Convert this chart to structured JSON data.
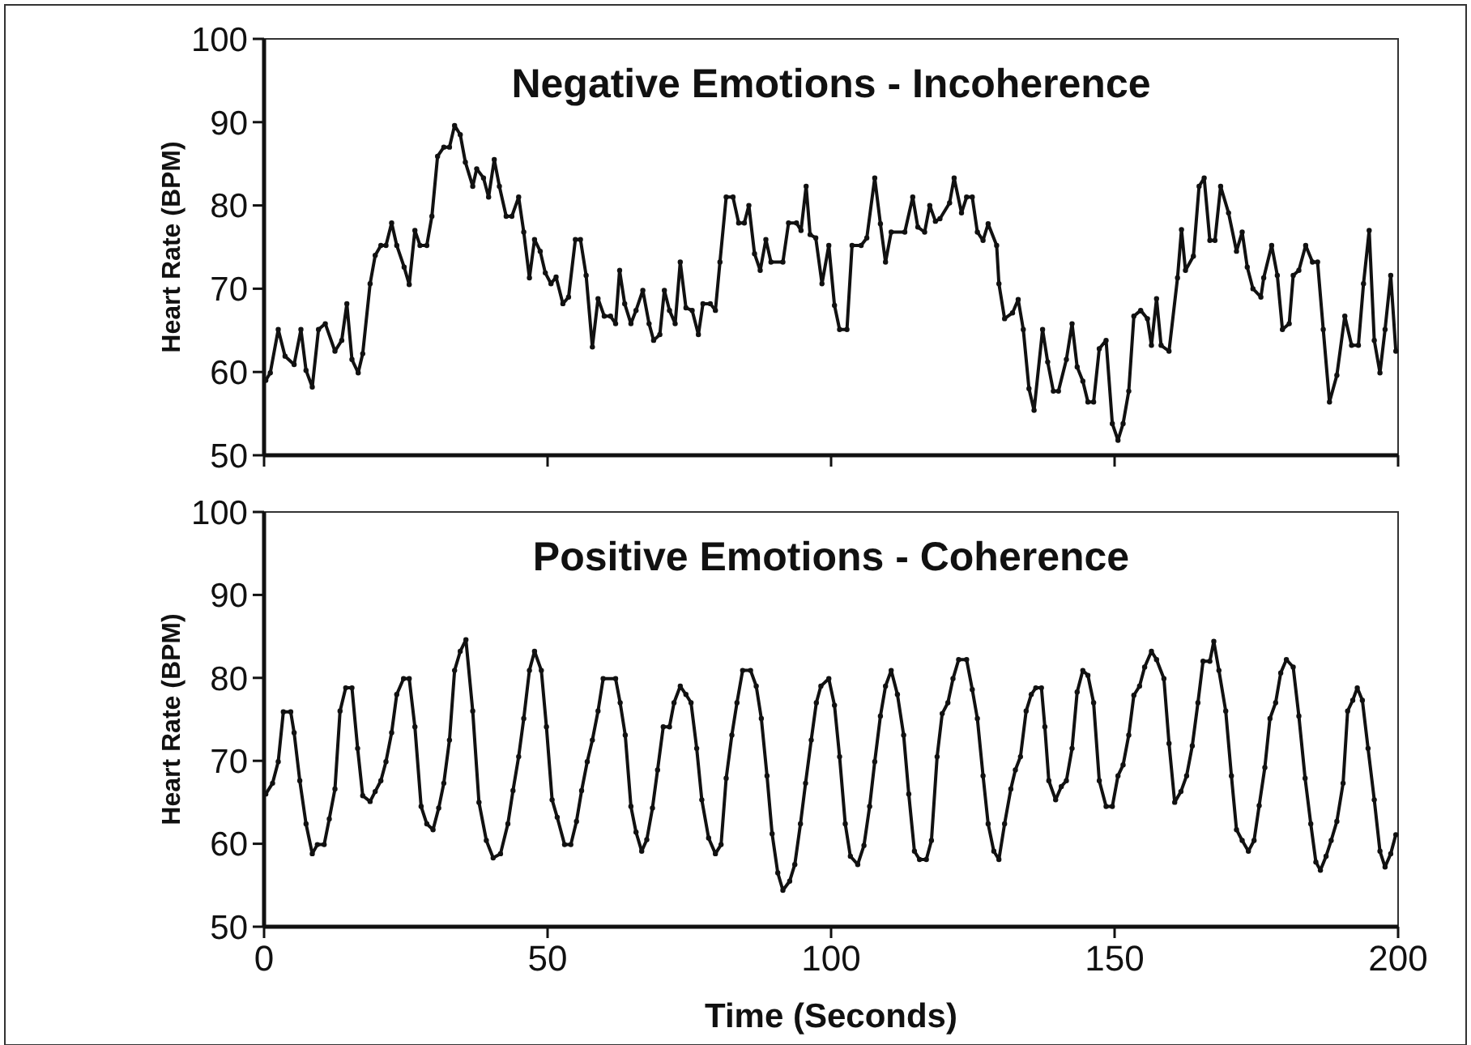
{
  "chart_data": [
    {
      "type": "line",
      "title": "Negative Emotions - Incoherence",
      "ylabel": "Heart Rate (BPM)",
      "xlim": [
        0,
        200
      ],
      "ylim": [
        50,
        100
      ],
      "xticks": [
        {
          "value": 0,
          "label": null
        },
        {
          "value": 50,
          "label": null
        },
        {
          "value": 100,
          "label": null
        },
        {
          "value": 150,
          "label": null
        },
        {
          "value": 200,
          "label": null
        }
      ],
      "yticks": [
        50,
        60,
        70,
        80,
        90,
        100
      ],
      "tick_labels": "y",
      "marker": "circle",
      "line_style": "solid",
      "series": [
        {
          "color": "#111111",
          "x": [
            0.3,
            1.1,
            2.5,
            3.7,
            5.3,
            6.5,
            7.4,
            8.5,
            9.6,
            10.8,
            12.5,
            13.7,
            14.6,
            15.5,
            16.6,
            17.4,
            18.7,
            19.6,
            20.6,
            21.5,
            22.5,
            23.4,
            24.7,
            25.6,
            26.6,
            27.5,
            28.7,
            29.6,
            30.6,
            31.7,
            32.7,
            33.6,
            34.6,
            35.5,
            36.8,
            37.5,
            38.7,
            39.6,
            40.6,
            41.5,
            42.7,
            43.7,
            44.9,
            45.8,
            46.8,
            47.7,
            48.7,
            49.6,
            50.6,
            51.5,
            52.7,
            53.7,
            54.9,
            55.8,
            56.8,
            57.9,
            58.9,
            60.0,
            61.1,
            62.0,
            62.7,
            63.6,
            64.7,
            65.6,
            66.8,
            67.9,
            68.7,
            69.8,
            70.6,
            71.5,
            72.5,
            73.4,
            74.4,
            75.5,
            76.6,
            77.4,
            78.7,
            79.6,
            80.4,
            81.5,
            82.7,
            83.7,
            84.7,
            85.5,
            86.5,
            87.5,
            88.5,
            89.4,
            91.5,
            92.5,
            93.9,
            94.7,
            95.6,
            96.3,
            97.3,
            98.4,
            99.6,
            100.6,
            101.5,
            102.8,
            103.7,
            105.3,
            106.3,
            107.7,
            108.7,
            109.6,
            110.6,
            113.0,
            114.4,
            115.3,
            116.5,
            117.4,
            118.4,
            119.2,
            120.9,
            121.7,
            123.0,
            123.9,
            124.9,
            125.8,
            126.8,
            127.7,
            129.2,
            129.6,
            130.6,
            132.0,
            133.0,
            133.9,
            134.9,
            135.8,
            137.3,
            138.2,
            139.2,
            140.1,
            141.5,
            142.5,
            143.4,
            144.4,
            145.3,
            146.3,
            147.3,
            148.5,
            149.6,
            150.6,
            151.5,
            152.5,
            153.4,
            154.6,
            155.8,
            156.5,
            157.4,
            158.2,
            159.6,
            161.1,
            161.8,
            162.5,
            163.9,
            164.9,
            165.8,
            166.8,
            167.7,
            168.7,
            170.1,
            171.5,
            172.5,
            173.4,
            174.4,
            175.8,
            176.3,
            177.7,
            178.7,
            179.6,
            180.8,
            181.5,
            182.5,
            183.7,
            184.9,
            185.8,
            186.8,
            187.9,
            189.2,
            190.6,
            191.8,
            193.0,
            193.9,
            194.9,
            195.8,
            196.8,
            197.7,
            198.7,
            199.6
          ],
          "values": [
            59.0,
            59.9,
            65.1,
            61.9,
            60.9,
            65.1,
            60.2,
            58.2,
            65.1,
            65.8,
            62.5,
            63.8,
            68.2,
            61.5,
            59.9,
            62.2,
            70.6,
            74.0,
            75.2,
            75.2,
            77.9,
            75.2,
            72.6,
            70.5,
            77.0,
            75.2,
            75.2,
            78.7,
            85.9,
            87.0,
            87.0,
            89.6,
            88.5,
            85.2,
            82.3,
            84.4,
            83.3,
            81.0,
            85.5,
            82.3,
            78.7,
            78.7,
            81.0,
            76.8,
            71.3,
            75.9,
            74.5,
            71.9,
            70.6,
            71.4,
            68.2,
            69.0,
            75.9,
            75.9,
            71.6,
            63.0,
            68.8,
            66.7,
            66.7,
            65.8,
            72.2,
            68.2,
            65.8,
            67.4,
            69.8,
            65.8,
            63.8,
            64.5,
            69.8,
            67.4,
            65.8,
            73.2,
            67.7,
            67.4,
            64.5,
            68.2,
            68.2,
            67.4,
            73.2,
            81.0,
            81.0,
            77.9,
            77.9,
            80.0,
            74.2,
            72.2,
            75.9,
            73.2,
            73.2,
            77.9,
            77.9,
            77.0,
            82.3,
            76.5,
            76.1,
            70.6,
            75.2,
            68.0,
            65.1,
            65.1,
            75.2,
            75.2,
            76.1,
            83.3,
            77.8,
            73.2,
            76.8,
            76.8,
            81.0,
            77.4,
            76.8,
            80.0,
            78.1,
            78.4,
            80.3,
            83.3,
            79.1,
            81.0,
            81.0,
            76.8,
            75.8,
            77.8,
            75.2,
            70.6,
            66.4,
            67.1,
            68.7,
            65.1,
            58.0,
            55.4,
            65.1,
            61.2,
            57.7,
            57.7,
            61.5,
            65.8,
            60.6,
            58.9,
            56.4,
            56.4,
            62.8,
            63.8,
            53.8,
            51.8,
            53.8,
            57.7,
            66.7,
            67.4,
            66.4,
            63.2,
            68.8,
            63.2,
            62.5,
            71.3,
            77.1,
            72.2,
            73.9,
            82.3,
            83.3,
            75.8,
            75.8,
            82.3,
            79.1,
            74.5,
            76.8,
            72.6,
            70.0,
            69.0,
            71.3,
            75.2,
            71.6,
            65.1,
            65.8,
            71.6,
            72.2,
            75.2,
            73.2,
            73.2,
            65.1,
            56.4,
            59.6,
            66.7,
            63.2,
            63.2,
            70.6,
            77.0,
            63.8,
            59.9,
            65.1,
            71.6,
            62.5
          ]
        }
      ]
    },
    {
      "type": "line",
      "title": "Positive Emotions - Coherence",
      "xlabel": "Time (Seconds)",
      "ylabel": "Heart Rate (BPM)",
      "xlim": [
        0,
        200
      ],
      "ylim": [
        50,
        100
      ],
      "xticks": [
        0,
        50,
        100,
        150,
        200
      ],
      "yticks": [
        50,
        60,
        70,
        80,
        90,
        100
      ],
      "marker": "circle",
      "line_style": "solid",
      "series": [
        {
          "color": "#111111",
          "x": [
            0.3,
            1.5,
            2.5,
            3.4,
            4.7,
            5.3,
            6.3,
            7.4,
            8.5,
            9.4,
            10.6,
            11.5,
            12.5,
            13.4,
            14.4,
            15.5,
            16.5,
            17.4,
            18.7,
            19.6,
            20.6,
            21.5,
            22.5,
            23.4,
            24.6,
            25.6,
            26.6,
            27.7,
            28.7,
            29.8,
            30.8,
            31.7,
            32.7,
            33.6,
            34.6,
            35.6,
            36.8,
            37.9,
            39.2,
            40.4,
            41.7,
            43.0,
            43.9,
            44.9,
            45.8,
            46.8,
            47.7,
            48.9,
            49.8,
            50.8,
            51.7,
            53.0,
            54.1,
            55.1,
            56.0,
            57.0,
            57.9,
            58.9,
            59.8,
            62.0,
            62.8,
            63.7,
            64.7,
            65.6,
            66.6,
            67.5,
            68.5,
            69.4,
            70.4,
            71.5,
            72.3,
            73.4,
            74.4,
            75.3,
            76.3,
            77.2,
            78.4,
            79.6,
            80.6,
            81.5,
            82.5,
            83.4,
            84.4,
            85.8,
            86.8,
            87.7,
            88.7,
            89.6,
            90.6,
            91.5,
            92.7,
            93.6,
            94.6,
            95.5,
            96.5,
            97.4,
            98.2,
            99.6,
            100.6,
            101.5,
            102.5,
            103.4,
            104.7,
            105.8,
            106.8,
            107.7,
            108.7,
            109.6,
            110.6,
            111.7,
            112.8,
            113.7,
            114.7,
            115.6,
            116.8,
            117.7,
            118.7,
            119.6,
            120.6,
            121.5,
            122.5,
            123.9,
            124.9,
            125.8,
            126.8,
            127.7,
            128.7,
            129.6,
            130.6,
            131.7,
            132.5,
            133.4,
            134.4,
            135.3,
            136.1,
            137.1,
            137.7,
            138.4,
            139.6,
            140.6,
            141.5,
            142.5,
            143.4,
            144.4,
            145.3,
            146.3,
            147.3,
            148.5,
            149.6,
            150.6,
            151.5,
            152.5,
            153.4,
            154.4,
            155.3,
            156.5,
            157.4,
            158.7,
            159.6,
            160.6,
            161.7,
            162.7,
            163.7,
            164.7,
            165.6,
            166.8,
            167.5,
            168.4,
            169.6,
            170.6,
            171.5,
            172.5,
            173.6,
            174.6,
            175.5,
            176.5,
            177.4,
            178.4,
            179.3,
            180.3,
            181.5,
            182.5,
            183.6,
            184.6,
            185.5,
            186.3,
            187.3,
            188.2,
            189.2,
            190.3,
            191.1,
            192.0,
            192.8,
            193.7,
            194.7,
            195.8,
            196.8,
            197.7,
            198.7,
            199.6
          ],
          "values": [
            66.0,
            67.3,
            69.9,
            75.9,
            75.9,
            73.4,
            67.6,
            62.4,
            58.8,
            59.9,
            59.9,
            63.0,
            66.6,
            76.0,
            78.8,
            78.8,
            71.5,
            65.8,
            65.1,
            66.3,
            67.6,
            69.9,
            73.4,
            78.0,
            79.9,
            79.9,
            74.1,
            64.5,
            62.4,
            61.7,
            64.3,
            67.3,
            72.5,
            80.9,
            83.2,
            84.6,
            76.0,
            65.0,
            60.4,
            58.3,
            58.8,
            62.4,
            66.4,
            70.5,
            75.1,
            80.9,
            83.2,
            80.9,
            74.1,
            65.3,
            63.2,
            59.9,
            59.9,
            62.7,
            66.4,
            69.9,
            72.5,
            76.0,
            79.9,
            79.9,
            77.0,
            73.1,
            64.5,
            61.4,
            59.1,
            60.5,
            64.3,
            68.9,
            74.1,
            74.1,
            77.0,
            79.0,
            78.0,
            77.0,
            71.5,
            65.3,
            60.7,
            58.8,
            59.9,
            67.9,
            73.1,
            77.0,
            80.9,
            80.9,
            79.0,
            75.1,
            68.2,
            61.2,
            56.5,
            54.4,
            55.5,
            57.5,
            62.4,
            67.3,
            72.5,
            77.0,
            79.0,
            79.9,
            76.7,
            70.5,
            62.4,
            58.5,
            57.5,
            59.8,
            64.5,
            69.9,
            75.4,
            79.0,
            80.9,
            78.0,
            73.1,
            66.0,
            59.1,
            58.1,
            58.1,
            60.4,
            70.5,
            75.7,
            77.0,
            79.9,
            82.2,
            82.2,
            78.6,
            75.1,
            68.2,
            62.4,
            59.1,
            58.1,
            62.4,
            66.6,
            68.9,
            70.5,
            76.0,
            78.0,
            78.8,
            78.8,
            74.1,
            67.6,
            65.3,
            66.9,
            67.6,
            71.5,
            78.3,
            80.9,
            80.3,
            77.0,
            67.6,
            64.5,
            64.5,
            68.2,
            69.5,
            73.1,
            77.9,
            79.0,
            81.3,
            83.2,
            82.2,
            79.9,
            72.1,
            65.0,
            66.3,
            68.2,
            71.8,
            77.0,
            82.0,
            82.0,
            84.4,
            80.9,
            76.0,
            68.2,
            61.7,
            60.4,
            59.1,
            60.4,
            64.6,
            69.2,
            75.1,
            77.0,
            80.6,
            82.2,
            81.3,
            75.4,
            67.9,
            62.4,
            57.8,
            56.8,
            58.5,
            60.4,
            62.7,
            67.3,
            76.0,
            77.3,
            78.8,
            77.3,
            71.5,
            65.3,
            59.1,
            57.2,
            58.8,
            61.1
          ]
        }
      ]
    }
  ]
}
